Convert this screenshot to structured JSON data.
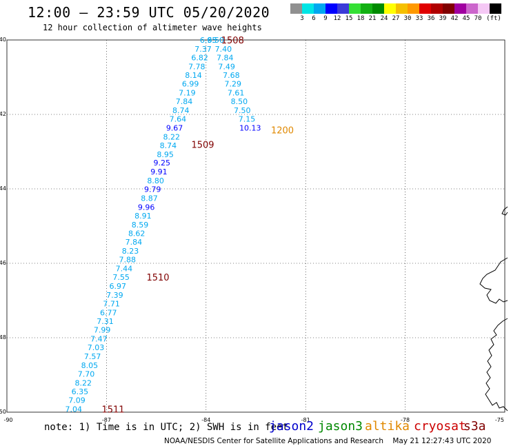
{
  "header": {
    "title": "12:00 – 23:59 UTC 05/20/2020",
    "subtitle": "12 hour collection of altimeter wave heights"
  },
  "scale": {
    "colors": [
      "#909090",
      "#00e5e5",
      "#00a8f0",
      "#0000ff",
      "#3b3bd8",
      "#35e035",
      "#12b012",
      "#008a00",
      "#ffff00",
      "#f5c000",
      "#ff9900",
      "#e00000",
      "#b00000",
      "#800000",
      "#a000a0",
      "#cc66cc",
      "#f5c8f5",
      "#000000"
    ],
    "labels": [
      "3",
      "6",
      "9",
      "12",
      "15",
      "18",
      "21",
      "24",
      "27",
      "30",
      "33",
      "36",
      "39",
      "42",
      "45",
      "70",
      "(ft)"
    ]
  },
  "axes": {
    "lat_labels": [
      "-40",
      "-42",
      "-44",
      "-46",
      "-48",
      "-50"
    ],
    "lon_labels": [
      "-90",
      "-87",
      "-84",
      "-81",
      "-78",
      "-75"
    ]
  },
  "chart_data": {
    "type": "map",
    "lat_range": [
      -50,
      -40
    ],
    "lon_range": [
      -90,
      -75
    ],
    "satellite_colors": {
      "jason2": "#0000cc",
      "jason3": "#008800",
      "altika": "#e08800",
      "cryosat": "#cc0000",
      "s3a": "#800000"
    },
    "points": [
      {
        "lat": -40.0,
        "lon": -83.93,
        "v": "6.95",
        "c": "#00a8f0"
      },
      {
        "lat": -40.0,
        "lon": -83.71,
        "v": "6.50",
        "c": "#00a8f0"
      },
      {
        "lat": -40.24,
        "lon": -84.09,
        "v": "7.37",
        "c": "#00a8f0"
      },
      {
        "lat": -40.24,
        "lon": -83.48,
        "v": "7.40",
        "c": "#00a8f0"
      },
      {
        "lat": -40.47,
        "lon": -84.19,
        "v": "6.82",
        "c": "#00a8f0"
      },
      {
        "lat": -40.47,
        "lon": -83.43,
        "v": "7.84",
        "c": "#00a8f0"
      },
      {
        "lat": -40.71,
        "lon": -84.28,
        "v": "7.78",
        "c": "#00a8f0"
      },
      {
        "lat": -40.71,
        "lon": -83.38,
        "v": "7.49",
        "c": "#00a8f0"
      },
      {
        "lat": -40.94,
        "lon": -84.38,
        "v": "8.14",
        "c": "#00a8f0"
      },
      {
        "lat": -40.94,
        "lon": -83.24,
        "v": "7.68",
        "c": "#00a8f0"
      },
      {
        "lat": -41.18,
        "lon": -84.47,
        "v": "6.99",
        "c": "#00a8f0"
      },
      {
        "lat": -41.18,
        "lon": -83.19,
        "v": "7.29",
        "c": "#00a8f0"
      },
      {
        "lat": -41.42,
        "lon": -84.57,
        "v": "7.19",
        "c": "#00a8f0"
      },
      {
        "lat": -41.42,
        "lon": -83.1,
        "v": "7.61",
        "c": "#00a8f0"
      },
      {
        "lat": -41.65,
        "lon": -84.66,
        "v": "7.84",
        "c": "#00a8f0"
      },
      {
        "lat": -41.65,
        "lon": -83.0,
        "v": "8.50",
        "c": "#00a8f0"
      },
      {
        "lat": -41.89,
        "lon": -84.76,
        "v": "8.74",
        "c": "#00a8f0"
      },
      {
        "lat": -41.89,
        "lon": -82.91,
        "v": "7.50",
        "c": "#00a8f0"
      },
      {
        "lat": -42.12,
        "lon": -84.85,
        "v": "7.64",
        "c": "#00a8f0"
      },
      {
        "lat": -42.12,
        "lon": -82.77,
        "v": "7.15",
        "c": "#00a8f0"
      },
      {
        "lat": -42.36,
        "lon": -84.95,
        "v": "9.67",
        "c": "#0000ff"
      },
      {
        "lat": -42.36,
        "lon": -82.67,
        "v": "10.13",
        "c": "#0000ff"
      },
      {
        "lat": -42.6,
        "lon": -85.04,
        "v": "8.22",
        "c": "#00a8f0"
      },
      {
        "lat": -42.83,
        "lon": -85.14,
        "v": "8.74",
        "c": "#00a8f0"
      },
      {
        "lat": -43.07,
        "lon": -85.23,
        "v": "8.95",
        "c": "#00a8f0"
      },
      {
        "lat": -43.3,
        "lon": -85.33,
        "v": "9.25",
        "c": "#0000ff"
      },
      {
        "lat": -43.54,
        "lon": -85.42,
        "v": "9.91",
        "c": "#0000ff"
      },
      {
        "lat": -43.78,
        "lon": -85.52,
        "v": "8.80",
        "c": "#00a8f0"
      },
      {
        "lat": -44.01,
        "lon": -85.61,
        "v": "9.79",
        "c": "#0000ff"
      },
      {
        "lat": -44.25,
        "lon": -85.71,
        "v": "8.87",
        "c": "#00a8f0"
      },
      {
        "lat": -44.49,
        "lon": -85.8,
        "v": "9.96",
        "c": "#0000ff"
      },
      {
        "lat": -44.72,
        "lon": -85.9,
        "v": "8.91",
        "c": "#00a8f0"
      },
      {
        "lat": -44.96,
        "lon": -85.99,
        "v": "8.59",
        "c": "#00a8f0"
      },
      {
        "lat": -45.19,
        "lon": -86.09,
        "v": "8.62",
        "c": "#00a8f0"
      },
      {
        "lat": -45.43,
        "lon": -86.18,
        "v": "7.84",
        "c": "#00a8f0"
      },
      {
        "lat": -45.67,
        "lon": -86.28,
        "v": "8.23",
        "c": "#00a8f0"
      },
      {
        "lat": -45.9,
        "lon": -86.37,
        "v": "7.88",
        "c": "#00a8f0"
      },
      {
        "lat": -46.14,
        "lon": -86.47,
        "v": "7.44",
        "c": "#00a8f0"
      },
      {
        "lat": -46.37,
        "lon": -86.56,
        "v": "7.55",
        "c": "#00a8f0"
      },
      {
        "lat": -46.61,
        "lon": -86.66,
        "v": "6.97",
        "c": "#00a8f0"
      },
      {
        "lat": -46.85,
        "lon": -86.75,
        "v": "7.39",
        "c": "#00a8f0"
      },
      {
        "lat": -47.08,
        "lon": -86.85,
        "v": "7.71",
        "c": "#00a8f0"
      },
      {
        "lat": -47.32,
        "lon": -86.94,
        "v": "6.77",
        "c": "#00a8f0"
      },
      {
        "lat": -47.56,
        "lon": -87.04,
        "v": "7.31",
        "c": "#00a8f0"
      },
      {
        "lat": -47.79,
        "lon": -87.13,
        "v": "7.99",
        "c": "#00a8f0"
      },
      {
        "lat": -48.03,
        "lon": -87.23,
        "v": "7.47",
        "c": "#00a8f0"
      },
      {
        "lat": -48.26,
        "lon": -87.32,
        "v": "7.03",
        "c": "#00a8f0"
      },
      {
        "lat": -48.5,
        "lon": -87.42,
        "v": "7.57",
        "c": "#00a8f0"
      },
      {
        "lat": -48.74,
        "lon": -87.51,
        "v": "8.05",
        "c": "#00a8f0"
      },
      {
        "lat": -48.97,
        "lon": -87.61,
        "v": "7.70",
        "c": "#00a8f0"
      },
      {
        "lat": -49.21,
        "lon": -87.7,
        "v": "8.22",
        "c": "#00a8f0"
      },
      {
        "lat": -49.44,
        "lon": -87.8,
        "v": "6.35",
        "c": "#00a8f0"
      },
      {
        "lat": -49.68,
        "lon": -87.89,
        "v": "7.09",
        "c": "#00a8f0"
      },
      {
        "lat": -49.92,
        "lon": -87.99,
        "v": "7.04",
        "c": "#00a8f0"
      }
    ],
    "times": [
      {
        "lat": -40.0,
        "lon": -83.2,
        "t": "1508",
        "c": "#800000"
      },
      {
        "lat": -42.81,
        "lon": -84.1,
        "t": "1509",
        "c": "#800000"
      },
      {
        "lat": -42.42,
        "lon": -81.7,
        "t": "1200",
        "c": "#e08800"
      },
      {
        "lat": -46.37,
        "lon": -85.45,
        "t": "1510",
        "c": "#800000"
      },
      {
        "lat": -49.92,
        "lon": -86.8,
        "t": "1511",
        "c": "#800000"
      }
    ]
  },
  "footer": {
    "note": "note: 1) Time is in UTC; 2) SWH is in feet",
    "legend": [
      {
        "name": "jason2",
        "color": "#0000cc"
      },
      {
        "name": "jason3",
        "color": "#008800"
      },
      {
        "name": "altika",
        "color": "#e08800"
      },
      {
        "name": "cryosat",
        "color": "#cc0000"
      },
      {
        "name": "s3a",
        "color": "#800000"
      }
    ],
    "credit": "NOAA/NESDIS Center for Satellite Applications and Research    May 21 12:27:43 UTC 2020"
  }
}
